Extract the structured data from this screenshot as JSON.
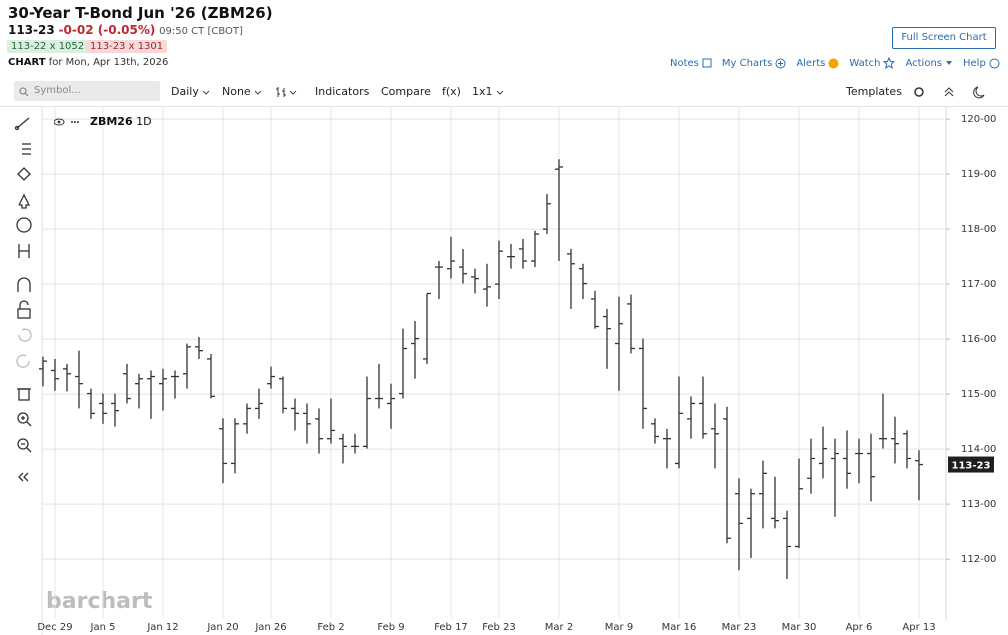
{
  "header": {
    "title": "30-Year T-Bond Jun '26 (ZBM26)",
    "last": "113-23",
    "change": "-0-02 (-0.05%)",
    "time": "09:50 CT [CBOT]",
    "bid": "113-22 x 1052",
    "ask": "113-23 x 1301",
    "chart_label": "CHART",
    "chart_date": "for Mon, Apr 13th, 2026",
    "full_screen": "Full Screen Chart"
  },
  "links": [
    "Notes",
    "My Charts",
    "Alerts",
    "Watch",
    "Actions",
    "Help"
  ],
  "toolbar": {
    "symbol_placeholder": "Symbol...",
    "interval": "Daily",
    "overlay": "None",
    "indicators": "Indicators",
    "compare": "Compare",
    "fx": "f(x)",
    "layout": "1x1",
    "templates": "Templates"
  },
  "legend": {
    "symbol": "ZBM26",
    "period": "1D"
  },
  "watermark": "barchart",
  "chart_data": {
    "type": "ohlc",
    "color": "#333333",
    "grid": true,
    "categories": [
      null,
      "Dec 29",
      null,
      null,
      null,
      "Jan 5",
      null,
      null,
      null,
      null,
      "Jan 12",
      null,
      null,
      null,
      null,
      "Jan 20",
      null,
      null,
      null,
      "Jan 26",
      null,
      null,
      null,
      null,
      "Feb 2",
      null,
      null,
      null,
      null,
      "Feb 9",
      null,
      null,
      null,
      null,
      "Feb 17",
      null,
      null,
      null,
      "Feb 23",
      null,
      null,
      null,
      null,
      "Mar 2",
      null,
      null,
      null,
      null,
      "Mar 9",
      null,
      null,
      null,
      null,
      "Mar 16",
      null,
      null,
      null,
      null,
      "Mar 23",
      null,
      null,
      null,
      null,
      "Mar 30",
      null,
      null,
      null,
      null,
      "Apr 6",
      null,
      null,
      null,
      null,
      "Apr 13"
    ],
    "series": [
      {
        "name": "open",
        "values": [
          115.46,
          115.43,
          115.46,
          115.32,
          115.01,
          114.83,
          114.83,
          115.37,
          115.19,
          115.28,
          115.19,
          115.32,
          115.37,
          115.86,
          115.64,
          114.37,
          113.74,
          114.46,
          114.74,
          115.19,
          115.28,
          114.74,
          114.65,
          114.55,
          114.19,
          114.19,
          114.05,
          114.05,
          114.92,
          114.83,
          115.01,
          115.92,
          115.64,
          117.31,
          117.28,
          117.31,
          117.13,
          116.91,
          117.0,
          117.5,
          117.64,
          117.42,
          118.0,
          119.09,
          117.55,
          117.28,
          116.73,
          116.41,
          115.92,
          116.64,
          115.83,
          114.46,
          114.19,
          113.74,
          114.55,
          114.83,
          114.37,
          114.55,
          113.19,
          112.74,
          113.19,
          112.74,
          112.74,
          112.23,
          113.47,
          113.74,
          113.83,
          113.83,
          113.92,
          113.92,
          114.19,
          114.19,
          114.28,
          113.79
        ]
      },
      {
        "name": "high",
        "values": [
          115.68,
          115.64,
          115.55,
          115.79,
          115.1,
          115.01,
          115.01,
          115.55,
          115.37,
          115.43,
          115.46,
          115.43,
          115.92,
          116.04,
          115.73,
          114.56,
          114.56,
          114.83,
          115.1,
          115.5,
          115.32,
          114.92,
          114.83,
          114.74,
          114.92,
          114.28,
          114.28,
          115.32,
          115.55,
          115.19,
          116.19,
          116.33,
          116.83,
          117.42,
          117.86,
          117.64,
          117.28,
          117.37,
          117.79,
          117.73,
          117.82,
          117.97,
          118.64,
          119.27,
          117.64,
          117.37,
          116.88,
          116.55,
          116.77,
          116.81,
          116.01,
          114.56,
          114.37,
          115.32,
          114.96,
          115.32,
          114.83,
          114.77,
          113.47,
          113.28,
          113.79,
          113.5,
          112.88,
          113.83,
          114.19,
          114.41,
          114.19,
          114.34,
          114.19,
          114.28,
          115.01,
          114.59,
          114.34,
          113.98
        ]
      },
      {
        "name": "low",
        "values": [
          115.14,
          115.06,
          115.05,
          114.74,
          114.55,
          114.46,
          114.41,
          114.83,
          114.74,
          114.55,
          114.7,
          114.92,
          115.1,
          115.64,
          114.92,
          113.38,
          113.56,
          114.28,
          114.55,
          115.1,
          114.65,
          114.34,
          114.1,
          113.92,
          114.1,
          113.74,
          113.92,
          114.01,
          114.74,
          114.37,
          114.92,
          115.28,
          115.55,
          116.73,
          117.1,
          117.01,
          116.83,
          116.59,
          116.73,
          117.28,
          117.28,
          117.31,
          117.91,
          117.42,
          116.55,
          116.73,
          116.19,
          115.46,
          115.06,
          115.74,
          114.37,
          114.1,
          113.65,
          113.65,
          114.19,
          114.19,
          113.65,
          112.29,
          111.8,
          112.02,
          112.56,
          112.56,
          111.64,
          112.2,
          113.19,
          113.47,
          112.77,
          113.28,
          113.38,
          113.05,
          114.01,
          113.74,
          113.65,
          113.07
        ]
      },
      {
        "name": "close",
        "values": [
          115.6,
          115.28,
          115.37,
          115.19,
          114.65,
          114.65,
          114.7,
          114.92,
          115.28,
          115.32,
          115.28,
          115.32,
          115.86,
          115.79,
          114.96,
          113.74,
          114.46,
          114.74,
          114.83,
          115.32,
          114.74,
          114.65,
          114.46,
          114.19,
          114.34,
          114.05,
          114.05,
          114.92,
          114.92,
          114.92,
          115.83,
          116.01,
          116.83,
          117.31,
          117.42,
          117.19,
          117.1,
          116.95,
          117.6,
          117.5,
          117.42,
          117.91,
          118.46,
          119.13,
          117.37,
          117.01,
          116.23,
          116.19,
          116.28,
          115.83,
          114.74,
          114.23,
          114.19,
          114.65,
          114.83,
          114.28,
          114.28,
          112.38,
          112.65,
          113.19,
          113.56,
          112.7,
          112.23,
          113.28,
          113.83,
          114.01,
          113.92,
          113.56,
          113.92,
          113.5,
          114.19,
          114.1,
          113.83,
          113.72
        ]
      }
    ],
    "ylim": [
      110.93,
      120.22
    ],
    "yticks": [
      {
        "value": 112,
        "label": "112-00"
      },
      {
        "value": 113,
        "label": "113-00"
      },
      {
        "value": 114,
        "label": "114-00"
      },
      {
        "value": 115,
        "label": "115-00"
      },
      {
        "value": 116,
        "label": "116-00"
      },
      {
        "value": 117,
        "label": "117-00"
      },
      {
        "value": 118,
        "label": "118-00"
      },
      {
        "value": 119,
        "label": "119-00"
      },
      {
        "value": 120,
        "label": "120-00"
      }
    ]
  }
}
